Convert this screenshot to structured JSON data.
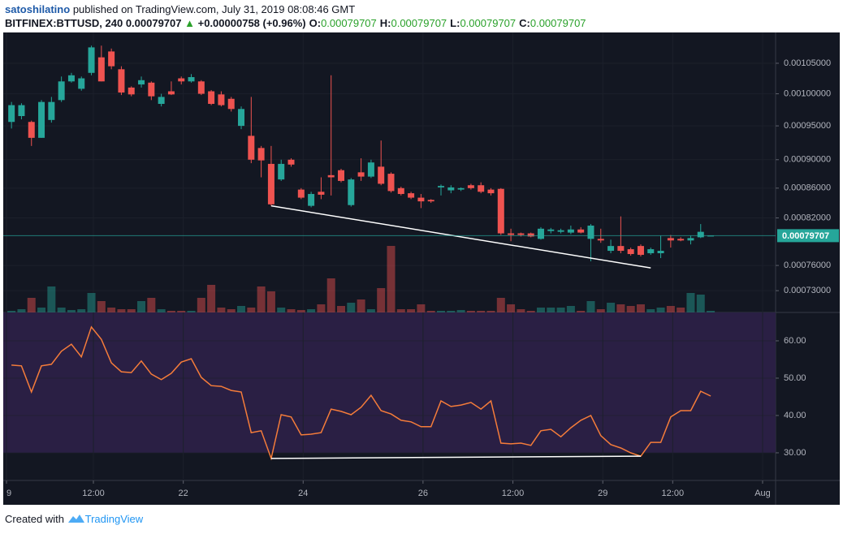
{
  "header": {
    "author": "satoshilatino",
    "published": "published on TradingView.com, July 31, 2019 08:08:46 GMT",
    "symbol": "BITFINEX:BTTUSD, 240",
    "last": "0.00079707",
    "arrow": "▲",
    "change": "+0.00000758 (+0.96%)",
    "ohlc": [
      {
        "label": "O:",
        "value": "0.00079707"
      },
      {
        "label": "H:",
        "value": "0.00079707"
      },
      {
        "label": "L:",
        "value": "0.00079707"
      },
      {
        "label": "C:",
        "value": "0.00079707"
      }
    ]
  },
  "chart_data": {
    "type": "candlestick",
    "x": [
      0,
      1,
      2,
      3,
      4,
      5,
      6,
      7,
      8,
      9,
      10,
      11,
      12,
      13,
      14,
      15,
      16,
      17,
      18,
      19,
      20,
      21,
      22,
      23,
      24,
      25,
      26,
      27,
      28,
      29,
      30,
      31,
      32,
      33,
      34,
      35,
      36,
      37,
      38,
      39,
      40,
      41,
      42,
      43,
      44,
      45,
      46,
      47,
      48,
      49,
      50,
      51,
      52,
      53,
      54,
      55,
      56,
      57,
      58,
      59,
      60,
      61,
      62,
      63,
      64,
      65,
      66,
      67,
      68,
      69,
      70
    ],
    "open": [
      0.000956,
      0.000965,
      0.000956,
      0.000932,
      0.000959,
      0.00099,
      0.00102,
      0.001008,
      0.001034,
      0.00106,
      0.00107,
      0.00104,
      0.00101,
      0.001015,
      0.001018,
      0.000984,
      0.001004,
      0.001025,
      0.00102,
      0.00102,
      0.001004,
      0.000999,
      0.000992,
      0.00095,
      0.000935,
      0.000917,
      0.000894,
      0.000872,
      0.0009,
      0.000858,
      0.000836,
      0.000855,
      0.000878,
      0.000885,
      0.000837,
      0.000882,
      0.000876,
      0.00089,
      0.00088,
      0.00086,
      0.000853,
      0.000847,
      0.000844,
      0.000861,
      0.000857,
      0.000858,
      0.000864,
      0.000864,
      0.000858,
      0.000859,
      0.0008,
      0.0008,
      0.0008,
      0.000793,
      0.000803,
      0.000802,
      0.000801,
      0.000805,
      0.000793,
      0.000793,
      0.000778,
      0.000784,
      0.00078,
      0.000784,
      0.000775,
      0.000775,
      0.000794,
      0.000793,
      0.000791,
      0.000795,
      0.00079707
    ],
    "high": [
      0.000987,
      0.000985,
      0.000958,
      0.00099,
      0.000995,
      0.001028,
      0.001034,
      0.001028,
      0.00108,
      0.00108,
      0.001075,
      0.001045,
      0.001012,
      0.001028,
      0.00102,
      0.001,
      0.00102,
      0.001028,
      0.001032,
      0.001022,
      0.001006,
      0.001004,
      0.000995,
      0.00098,
      0.000995,
      0.00092,
      0.00092,
      0.0009,
      0.000902,
      0.00086,
      0.000855,
      0.000875,
      0.00103,
      0.000887,
      0.000874,
      0.000902,
      0.0009,
      0.000928,
      0.000882,
      0.000862,
      0.000855,
      0.000852,
      0.000845,
      0.000865,
      0.000864,
      0.000861,
      0.000866,
      0.000868,
      0.00086,
      0.00086,
      0.000806,
      0.000801,
      0.000801,
      0.000808,
      0.000807,
      0.000806,
      0.00081,
      0.000808,
      0.000812,
      0.000806,
      0.000792,
      0.000822,
      0.000782,
      0.000786,
      0.000782,
      0.000797,
      0.000798,
      0.000795,
      0.000797,
      0.000812,
      0.00079707
    ],
    "low": [
      0.000946,
      0.00096,
      0.00092,
      0.000932,
      0.000955,
      0.000987,
      0.001018,
      0.001005,
      0.00103,
      0.00102,
      0.00104,
      0.000998,
      0.000996,
      0.00101,
      0.00099,
      0.00098,
      0.000998,
      0.001015,
      0.001018,
      0.000998,
      0.000982,
      0.00098,
      0.000972,
      0.000945,
      0.000895,
      0.000875,
      0.000836,
      0.00087,
      0.00089,
      0.000845,
      0.000834,
      0.000845,
      0.00085,
      0.000868,
      0.000835,
      0.00087,
      0.000874,
      0.000864,
      0.000854,
      0.00085,
      0.000845,
      0.000833,
      0.00084,
      0.00085,
      0.000853,
      0.000856,
      0.000858,
      0.000853,
      0.00085,
      0.000798,
      0.00079,
      0.000796,
      0.000795,
      0.000792,
      0.0008,
      0.0008,
      0.000799,
      0.0008,
      0.000765,
      0.000788,
      0.000775,
      0.000775,
      0.000772,
      0.000771,
      0.000773,
      0.000769,
      0.000782,
      0.00079,
      0.000786,
      0.000794,
      0.00079707
    ],
    "close": [
      0.000982,
      0.000982,
      0.000932,
      0.000987,
      0.000987,
      0.00102,
      0.00103,
      0.001025,
      0.001077,
      0.00102,
      0.001045,
      0.001002,
      0.000999,
      0.001022,
      0.000996,
      0.000995,
      0.000999,
      0.00102,
      0.001027,
      0.001,
      0.000984,
      0.000982,
      0.000976,
      0.000976,
      0.0009,
      0.000899,
      0.000838,
      0.000894,
      0.000893,
      0.000847,
      0.000852,
      0.000851,
      0.000875,
      0.00087,
      0.000872,
      0.000876,
      0.000896,
      0.000866,
      0.000856,
      0.000852,
      0.000847,
      0.000842,
      0.000842,
      0.000863,
      0.000861,
      0.00086,
      0.00086,
      0.000855,
      0.000853,
      0.0008,
      0.000798,
      0.000798,
      0.000796,
      0.000806,
      0.000805,
      0.000804,
      0.000805,
      0.000801,
      0.00081,
      0.000791,
      0.000784,
      0.000778,
      0.000774,
      0.000773,
      0.00078,
      0.000778,
      0.000791,
      0.000791,
      0.000794,
      0.000802,
      0.00079707
    ],
    "volume": [
      2,
      4,
      18,
      6,
      32,
      6,
      3,
      4,
      24,
      14,
      6,
      4,
      4,
      14,
      18,
      4,
      2,
      2,
      2,
      18,
      34,
      6,
      4,
      8,
      6,
      32,
      26,
      6,
      4,
      3,
      4,
      10,
      42,
      8,
      12,
      16,
      4,
      30,
      82,
      4,
      4,
      10,
      2,
      2,
      2,
      3,
      2,
      2,
      2,
      18,
      10,
      4,
      2,
      6,
      6,
      6,
      8,
      2,
      14,
      4,
      12,
      10,
      8,
      10,
      4,
      6,
      8,
      6,
      24,
      22,
      2
    ],
    "up_color": "#26a69a",
    "down_color": "#ef5350",
    "log_scale": true,
    "grid": true,
    "ylim": [
      0.000705,
      0.001103
    ],
    "yticks": [
      {
        "value": 0.00073,
        "label": "0.00073000"
      },
      {
        "value": 0.00076,
        "label": "0.00076000"
      },
      {
        "value": 0.00082,
        "label": "0.00082000"
      },
      {
        "value": 0.00086,
        "label": "0.00086000"
      },
      {
        "value": 0.0009,
        "label": "0.00090000"
      },
      {
        "value": 0.00095,
        "label": "0.00095000"
      },
      {
        "value": 0.001,
        "label": "0.00100000"
      },
      {
        "value": 0.00105,
        "label": "0.00105000"
      }
    ],
    "xlim": [
      -0.5,
      76.5
    ],
    "xticks": [
      {
        "value": -0.5,
        "label": "9"
      },
      {
        "value": 8.2,
        "label": "12:00"
      },
      {
        "value": 17.2,
        "label": "22"
      },
      {
        "value": 29.2,
        "label": "24"
      },
      {
        "value": 41.2,
        "label": "26"
      },
      {
        "value": 50.2,
        "label": "12:00"
      },
      {
        "value": 59.2,
        "label": "29"
      },
      {
        "value": 66.2,
        "label": "12:00"
      },
      {
        "value": 75.2,
        "label": "Aug"
      }
    ],
    "last_price": 0.00079707,
    "trendline": {
      "x": [
        26,
        64
      ],
      "y": [
        0.000836,
        0.000757
      ],
      "color": "#ffffff"
    },
    "rsi": {
      "values": [
        53.5,
        53.3,
        46.3,
        53.3,
        53.7,
        57.2,
        59.1,
        55.7,
        63.7,
        60.4,
        54.1,
        51.7,
        51.5,
        54.6,
        51.1,
        49.6,
        51.3,
        54.3,
        55.2,
        50.2,
        48,
        47.8,
        46.7,
        46.3,
        35.4,
        35.9,
        28.5,
        40.2,
        39.6,
        34.8,
        35,
        35.4,
        41.7,
        41.1,
        40.2,
        42.2,
        45.4,
        41.3,
        40.4,
        38.7,
        38.3,
        37,
        37,
        43.9,
        42.4,
        42.8,
        43.5,
        41.7,
        43.9,
        32.6,
        32.4,
        32.6,
        32,
        35.9,
        36.3,
        34.3,
        36.7,
        38.7,
        40,
        34.6,
        32.2,
        31.3,
        30,
        29.1,
        32.8,
        32.8,
        39.6,
        41.3,
        41.3,
        46.5,
        45.2
      ],
      "color": "#f57c3a",
      "band": [
        30,
        70
      ],
      "band_color": "#2a1f44",
      "ylim": [
        22.6,
        67.6
      ],
      "yticks": [
        {
          "value": 30,
          "label": "30.00"
        },
        {
          "value": 40,
          "label": "40.00"
        },
        {
          "value": 50,
          "label": "50.00"
        },
        {
          "value": 60,
          "label": "60.00"
        }
      ],
      "trendline": {
        "x": [
          26,
          63
        ],
        "y": [
          28.5,
          29.1
        ],
        "color": "#ffffff"
      }
    }
  },
  "footer": {
    "text": "Created with",
    "brand": "TradingView"
  }
}
